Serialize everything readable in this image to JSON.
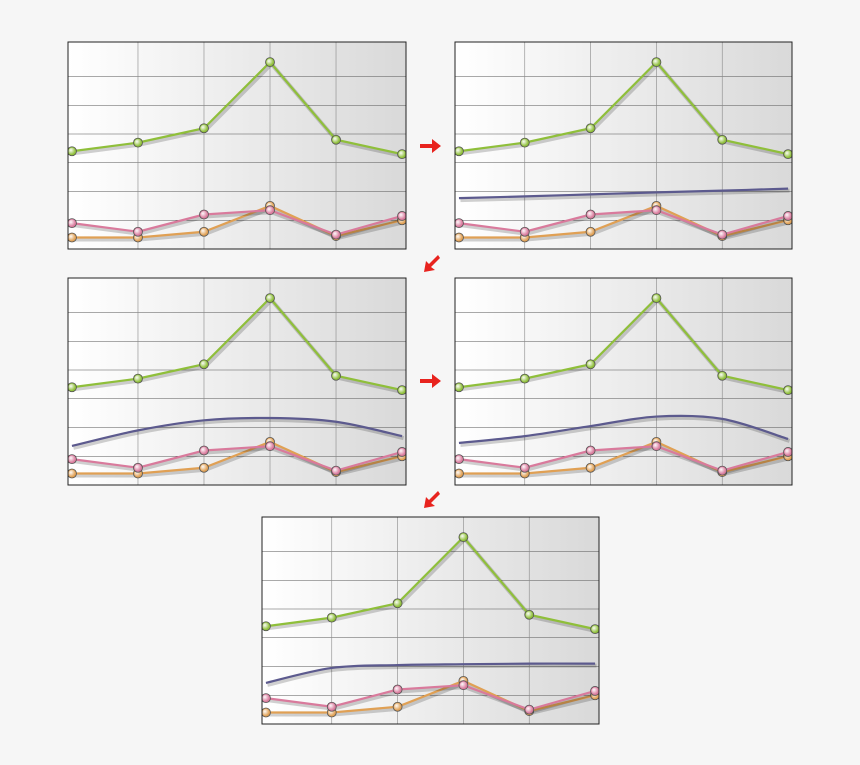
{
  "chart_data": [
    {
      "type": "line",
      "x": [
        0,
        1,
        2,
        3,
        4,
        5
      ],
      "xlim": [
        -0.06,
        5.06
      ],
      "ylim": [
        0,
        7.2
      ],
      "xticks": [
        1,
        2,
        3,
        4
      ],
      "yticks": [
        1,
        2,
        3,
        4,
        5,
        6
      ],
      "grid": true,
      "series": [
        {
          "color": "#8fbf3a",
          "values": [
            3.4,
            3.7,
            4.2,
            6.5,
            3.8,
            3.3
          ]
        },
        {
          "color": "#e0a054",
          "values": [
            0.4,
            0.4,
            0.6,
            1.5,
            0.45,
            1.0
          ]
        },
        {
          "color": "#d97a9c",
          "values": [
            0.9,
            0.6,
            1.2,
            1.35,
            0.5,
            1.15
          ]
        }
      ]
    },
    {
      "type": "line",
      "x": [
        0,
        1,
        2,
        3,
        4,
        5
      ],
      "xlim": [
        -0.06,
        5.06
      ],
      "ylim": [
        0,
        7.2
      ],
      "xticks": [
        1,
        2,
        3,
        4
      ],
      "yticks": [
        1,
        2,
        3,
        4,
        5,
        6
      ],
      "grid": true,
      "series": [
        {
          "color": "#8fbf3a",
          "values": [
            3.4,
            3.7,
            4.2,
            6.5,
            3.8,
            3.3
          ]
        },
        {
          "color": "#5c5a8e",
          "smooth": true,
          "markers": false,
          "values": [
            1.77,
            1.83,
            1.9,
            1.97,
            2.03,
            2.1
          ]
        },
        {
          "color": "#e0a054",
          "values": [
            0.4,
            0.4,
            0.6,
            1.5,
            0.45,
            1.0
          ]
        },
        {
          "color": "#d97a9c",
          "values": [
            0.9,
            0.6,
            1.2,
            1.35,
            0.5,
            1.15
          ]
        }
      ]
    },
    {
      "type": "line",
      "x": [
        0,
        1,
        2,
        3,
        4,
        5
      ],
      "xlim": [
        -0.06,
        5.06
      ],
      "ylim": [
        0,
        7.2
      ],
      "xticks": [
        1,
        2,
        3,
        4
      ],
      "yticks": [
        1,
        2,
        3,
        4,
        5,
        6
      ],
      "grid": true,
      "series": [
        {
          "color": "#8fbf3a",
          "values": [
            3.4,
            3.7,
            4.2,
            6.5,
            3.8,
            3.3
          ]
        },
        {
          "color": "#5c5a8e",
          "smooth": true,
          "markers": false,
          "values": [
            1.36,
            1.9,
            2.25,
            2.33,
            2.2,
            1.7
          ]
        },
        {
          "color": "#e0a054",
          "values": [
            0.4,
            0.4,
            0.6,
            1.5,
            0.45,
            1.0
          ]
        },
        {
          "color": "#d97a9c",
          "values": [
            0.9,
            0.6,
            1.2,
            1.35,
            0.5,
            1.15
          ]
        }
      ]
    },
    {
      "type": "line",
      "x": [
        0,
        1,
        2,
        3,
        4,
        5
      ],
      "xlim": [
        -0.06,
        5.06
      ],
      "ylim": [
        0,
        7.2
      ],
      "xticks": [
        1,
        2,
        3,
        4
      ],
      "yticks": [
        1,
        2,
        3,
        4,
        5,
        6
      ],
      "grid": true,
      "series": [
        {
          "color": "#8fbf3a",
          "values": [
            3.4,
            3.7,
            4.2,
            6.5,
            3.8,
            3.3
          ]
        },
        {
          "color": "#5c5a8e",
          "smooth": true,
          "markers": false,
          "values": [
            1.46,
            1.7,
            2.05,
            2.38,
            2.3,
            1.6
          ]
        },
        {
          "color": "#e0a054",
          "values": [
            0.4,
            0.4,
            0.6,
            1.5,
            0.45,
            1.0
          ]
        },
        {
          "color": "#d97a9c",
          "values": [
            0.9,
            0.6,
            1.2,
            1.35,
            0.5,
            1.15
          ]
        }
      ]
    },
    {
      "type": "line",
      "x": [
        0,
        1,
        2,
        3,
        4,
        5
      ],
      "xlim": [
        -0.06,
        5.06
      ],
      "ylim": [
        0,
        7.2
      ],
      "xticks": [
        1,
        2,
        3,
        4
      ],
      "yticks": [
        1,
        2,
        3,
        4,
        5,
        6
      ],
      "grid": true,
      "series": [
        {
          "color": "#8fbf3a",
          "values": [
            3.4,
            3.7,
            4.2,
            6.5,
            3.8,
            3.3
          ]
        },
        {
          "color": "#5c5a8e",
          "smooth": true,
          "markers": false,
          "values": [
            1.43,
            1.95,
            2.05,
            2.08,
            2.1,
            2.1
          ]
        },
        {
          "color": "#e0a054",
          "values": [
            0.4,
            0.4,
            0.6,
            1.5,
            0.45,
            1.0
          ]
        },
        {
          "color": "#d97a9c",
          "values": [
            0.9,
            0.6,
            1.2,
            1.35,
            0.5,
            1.15
          ]
        }
      ]
    }
  ]
}
